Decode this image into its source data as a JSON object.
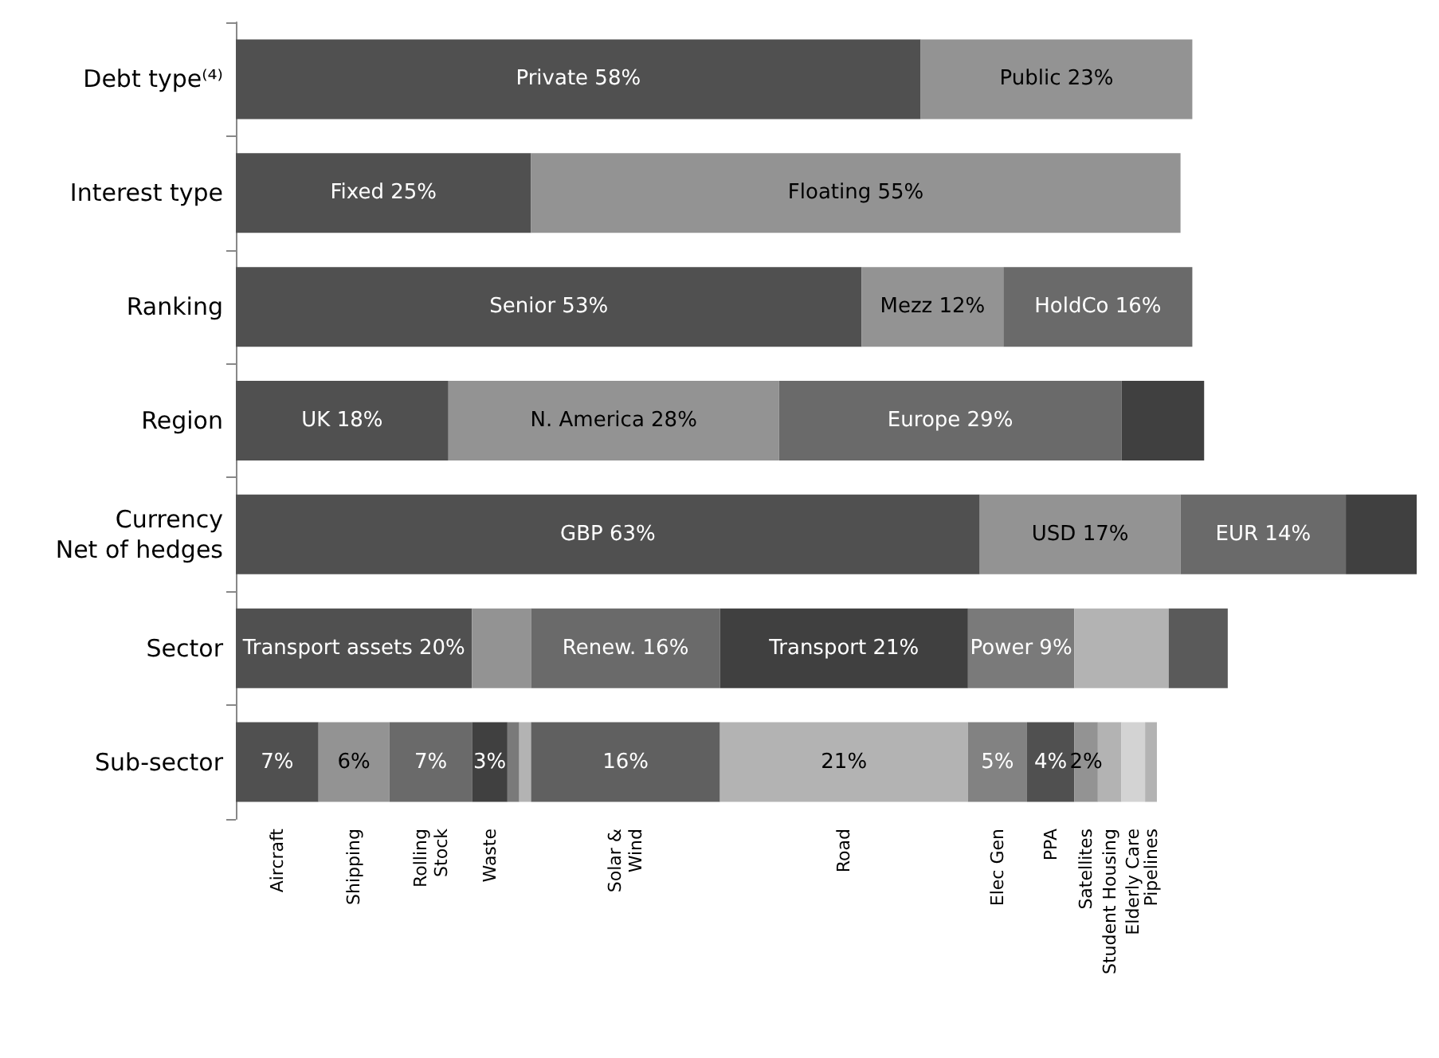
{
  "chart_data": {
    "type": "bar",
    "orientation": "horizontal",
    "stacked": true,
    "tick_labels": "y",
    "categories": [
      "Debt type⁽⁴⁾",
      "Interest type",
      "Ranking",
      "Region",
      "Currency\nNet of hedges",
      "Sector",
      "Sub-sector"
    ],
    "series": [
      {
        "values": [
          58,
          25,
          53,
          18,
          63,
          20,
          7
        ],
        "colors": [
          "#505050",
          "#505050",
          "#505050",
          "#505050",
          "#505050",
          "#505050",
          "#505050"
        ],
        "value_labels": [
          "Private 58%",
          "Fixed 25%",
          "Senior 53%",
          "UK 18%",
          "GBP 63%",
          "Transport assets 20%",
          "7%"
        ]
      },
      {
        "values": [
          23,
          55,
          12,
          28,
          17,
          5,
          6
        ],
        "colors": [
          "#939393",
          "#939393",
          "#939393",
          "#939393",
          "#939393",
          "#939393",
          "#939393"
        ],
        "value_labels": [
          "Public 23%",
          "Floating 55%",
          "Mezz 12%",
          "N. America 28%",
          "USD 17%",
          null,
          "6%"
        ]
      },
      {
        "values": [
          null,
          null,
          16,
          29,
          14,
          16,
          7
        ],
        "colors": [
          null,
          null,
          "#6a6a6a",
          "#6a6a6a",
          "#6a6a6a",
          "#6a6a6a",
          "#6a6a6a"
        ],
        "value_labels": [
          null,
          null,
          "HoldCo 16%",
          "Europe 29%",
          "EUR 14%",
          "Renew. 16%",
          "7%"
        ]
      },
      {
        "values": [
          null,
          null,
          null,
          7,
          6,
          21,
          3
        ],
        "colors": [
          null,
          null,
          null,
          "#404040",
          "#404040",
          "#404040",
          "#404040"
        ],
        "value_labels": [
          null,
          null,
          null,
          null,
          null,
          "Transport 21%",
          "3%"
        ]
      },
      {
        "values": [
          null,
          null,
          null,
          null,
          null,
          9,
          1
        ],
        "colors": [
          null,
          null,
          null,
          null,
          null,
          "#7a7a7a",
          "#7a7a7a"
        ],
        "value_labels": [
          null,
          null,
          null,
          null,
          null,
          "Power 9%",
          null
        ]
      },
      {
        "values": [
          null,
          null,
          null,
          null,
          null,
          8,
          1
        ],
        "colors": [
          null,
          null,
          null,
          null,
          null,
          "#b3b3b3",
          "#b3b3b3"
        ],
        "value_labels": [
          null,
          null,
          null,
          null,
          null,
          null,
          null
        ]
      },
      {
        "values": [
          null,
          null,
          null,
          null,
          null,
          5,
          16
        ],
        "colors": [
          null,
          null,
          null,
          null,
          null,
          "#5a5a5a",
          "#606060"
        ],
        "value_labels": [
          null,
          null,
          null,
          null,
          null,
          null,
          "16%"
        ]
      },
      {
        "values": [
          null,
          null,
          null,
          null,
          null,
          null,
          21
        ],
        "colors": [
          null,
          null,
          null,
          null,
          null,
          null,
          "#b3b3b3"
        ],
        "value_labels": [
          null,
          null,
          null,
          null,
          null,
          null,
          "21%"
        ]
      },
      {
        "values": [
          null,
          null,
          null,
          null,
          null,
          null,
          5
        ],
        "colors": [
          null,
          null,
          null,
          null,
          null,
          null,
          "#828282"
        ],
        "value_labels": [
          null,
          null,
          null,
          null,
          null,
          null,
          "5%"
        ]
      },
      {
        "values": [
          null,
          null,
          null,
          null,
          null,
          null,
          4
        ],
        "colors": [
          null,
          null,
          null,
          null,
          null,
          null,
          "#505050"
        ],
        "value_labels": [
          null,
          null,
          null,
          null,
          null,
          null,
          "4%"
        ]
      },
      {
        "values": [
          null,
          null,
          null,
          null,
          null,
          null,
          2
        ],
        "colors": [
          null,
          null,
          null,
          null,
          null,
          null,
          "#939393"
        ],
        "value_labels": [
          null,
          null,
          null,
          null,
          null,
          null,
          "2%"
        ]
      },
      {
        "values": [
          null,
          null,
          null,
          null,
          null,
          null,
          2
        ],
        "colors": [
          null,
          null,
          null,
          null,
          null,
          null,
          "#b3b3b3"
        ],
        "value_labels": [
          null,
          null,
          null,
          null,
          null,
          null,
          null
        ]
      },
      {
        "values": [
          null,
          null,
          null,
          null,
          null,
          null,
          2
        ],
        "colors": [
          null,
          null,
          null,
          null,
          null,
          null,
          "#d3d3d3"
        ],
        "value_labels": [
          null,
          null,
          null,
          null,
          null,
          null,
          null
        ]
      },
      {
        "values": [
          null,
          null,
          null,
          null,
          null,
          null,
          1
        ],
        "colors": [
          null,
          null,
          null,
          null,
          null,
          null,
          "#b3b3b3"
        ],
        "value_labels": [
          null,
          null,
          null,
          null,
          null,
          null,
          null
        ]
      }
    ],
    "annotations": [
      {
        "text": "Aircraft",
        "x": 3.5,
        "y": "Sub-sector"
      },
      {
        "text": "Shipping",
        "x": 10,
        "y": "Sub-sector"
      },
      {
        "text": "Rolling\nStock",
        "x": 16.5,
        "y": "Sub-sector"
      },
      {
        "text": "Waste",
        "x": 21.5,
        "y": "Sub-sector"
      },
      {
        "text": "Solar &\nWind",
        "x": 33,
        "y": "Sub-sector"
      },
      {
        "text": "Road",
        "x": 51.5,
        "y": "Sub-sector"
      },
      {
        "text": "Elec Gen",
        "x": 64.5,
        "y": "Sub-sector"
      },
      {
        "text": "PPA",
        "x": 69,
        "y": "Sub-sector"
      },
      {
        "text": "Satellites",
        "x": 72,
        "y": "Sub-sector"
      },
      {
        "text": "Student Housing",
        "x": 74,
        "y": "Sub-sector"
      },
      {
        "text": "Elderly Care",
        "x": 76,
        "y": "Sub-sector"
      },
      {
        "text": "Pipelines",
        "x": 77.5,
        "y": "Sub-sector"
      }
    ]
  }
}
